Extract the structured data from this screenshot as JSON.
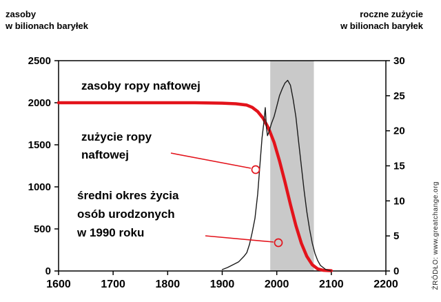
{
  "header": {
    "left_label_line1": "zasoby",
    "left_label_line2": "w bilionach baryłek",
    "right_label_line1": "roczne zużycie",
    "right_label_line2": "w bilionach baryłek"
  },
  "source": "ŹRÓDŁO: www.greatchange.org",
  "annotations": {
    "reserves_label": "zasoby ropy naftowej",
    "consumption_label_line1": "zużycie ropy",
    "consumption_label_line2": "naftowej",
    "lifespan_label_line1": "średni okres życia",
    "lifespan_label_line2": "osób urodzonych",
    "lifespan_label_line3": "w 1990 roku"
  },
  "colors": {
    "reserves_line": "#e3131b",
    "consumption_line": "#1a1a1a",
    "band": "#c9c9c9",
    "annotation": "#e3131b",
    "axis": "#000000"
  },
  "chart_data": {
    "type": "line",
    "title": "",
    "xlabel": "",
    "x_axis": {
      "min": 1600,
      "max": 2200,
      "ticks": [
        1600,
        1700,
        1800,
        1900,
        2000,
        2100,
        2200
      ]
    },
    "y_left": {
      "label": "zasoby w bilionach baryłek",
      "min": 0,
      "max": 2500,
      "ticks": [
        0,
        500,
        1000,
        1500,
        2000,
        2500
      ]
    },
    "y_right": {
      "label": "roczne zużycie w bilionach baryłek",
      "min": 0,
      "max": 30,
      "ticks": [
        0,
        5,
        10,
        15,
        20,
        25,
        30
      ]
    },
    "grid": false,
    "legend_position": "in-plot annotations",
    "band": {
      "x_start": 1988,
      "x_end": 2068,
      "meaning": "średni okres życia osób urodzonych w 1990 roku"
    },
    "series": [
      {
        "name": "zasoby ropy naftowej",
        "axis": "left",
        "points": [
          [
            1600,
            2000
          ],
          [
            1700,
            2000
          ],
          [
            1800,
            2000
          ],
          [
            1850,
            2000
          ],
          [
            1900,
            1995
          ],
          [
            1925,
            1988
          ],
          [
            1945,
            1972
          ],
          [
            1955,
            1945
          ],
          [
            1965,
            1895
          ],
          [
            1975,
            1815
          ],
          [
            1985,
            1695
          ],
          [
            1995,
            1530
          ],
          [
            2005,
            1310
          ],
          [
            2015,
            1060
          ],
          [
            2025,
            790
          ],
          [
            2035,
            540
          ],
          [
            2045,
            330
          ],
          [
            2055,
            175
          ],
          [
            2065,
            75
          ],
          [
            2075,
            25
          ],
          [
            2085,
            8
          ],
          [
            2100,
            3
          ]
        ]
      },
      {
        "name": "zużycie ropy naftowej",
        "axis": "right",
        "points": [
          [
            1900,
            0.2
          ],
          [
            1910,
            0.5
          ],
          [
            1920,
            0.9
          ],
          [
            1930,
            1.3
          ],
          [
            1940,
            2.1
          ],
          [
            1945,
            2.6
          ],
          [
            1950,
            3.8
          ],
          [
            1955,
            5.5
          ],
          [
            1960,
            7.5
          ],
          [
            1965,
            11
          ],
          [
            1970,
            16
          ],
          [
            1973,
            19
          ],
          [
            1976,
            21
          ],
          [
            1979,
            23.3
          ],
          [
            1981,
            20.5
          ],
          [
            1983,
            19.3
          ],
          [
            1986,
            19.9
          ],
          [
            1990,
            21
          ],
          [
            1995,
            22
          ],
          [
            2000,
            23.5
          ],
          [
            2005,
            25
          ],
          [
            2010,
            26
          ],
          [
            2015,
            26.8
          ],
          [
            2020,
            27.2
          ],
          [
            2025,
            26.5
          ],
          [
            2030,
            24.5
          ],
          [
            2035,
            22
          ],
          [
            2040,
            18.5
          ],
          [
            2045,
            15
          ],
          [
            2050,
            11.5
          ],
          [
            2055,
            8.5
          ],
          [
            2060,
            6
          ],
          [
            2065,
            4
          ],
          [
            2070,
            2.5
          ],
          [
            2075,
            1.5
          ],
          [
            2080,
            0.8
          ],
          [
            2090,
            0.2
          ],
          [
            2100,
            0
          ]
        ]
      }
    ]
  }
}
